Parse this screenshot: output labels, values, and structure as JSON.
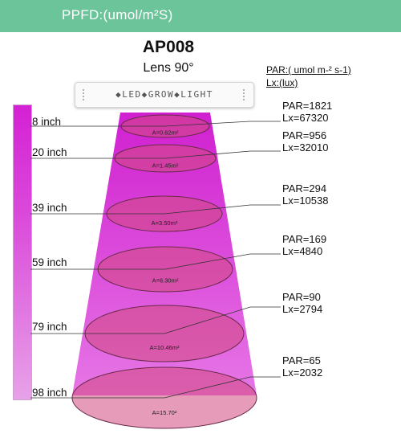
{
  "header": {
    "title": "PPFD:(umol/m²S)"
  },
  "model": "AP008",
  "lens": "Lens 90°",
  "legend": {
    "par_unit": "PAR:( umol m-² s-1)",
    "lux_unit": "Lx:(lux)"
  },
  "lamp": {
    "label": "◆LED◆GROW◆LIGHT"
  },
  "colors": {
    "header": "#6bc49a",
    "beam_top": "#d020d0",
    "beam_bottom": "#e676e6",
    "ellipse_fill": "#d24a7e",
    "scale_top": "#d421d4",
    "scale_bottom": "#e7a2e8"
  },
  "levels": [
    {
      "distance": "8 inch",
      "area": "A=0.62m²",
      "par": "PAR=1821",
      "lux": "Lx=67320"
    },
    {
      "distance": "20 inch",
      "area": "A=1.45m²",
      "par": "PAR=956",
      "lux": "Lx=32010"
    },
    {
      "distance": "39 inch",
      "area": "A=3.50m²",
      "par": "PAR=294",
      "lux": "Lx=10538"
    },
    {
      "distance": "59 inch",
      "area": "A=6.30m²",
      "par": "PAR=169",
      "lux": "Lx=4840"
    },
    {
      "distance": "79 inch",
      "area": "A=10.46m²",
      "par": "PAR=90",
      "lux": "Lx=2794"
    },
    {
      "distance": "98 inch",
      "area": "A=15.70²",
      "par": "PAR=65",
      "lux": "Lx=2032"
    }
  ]
}
